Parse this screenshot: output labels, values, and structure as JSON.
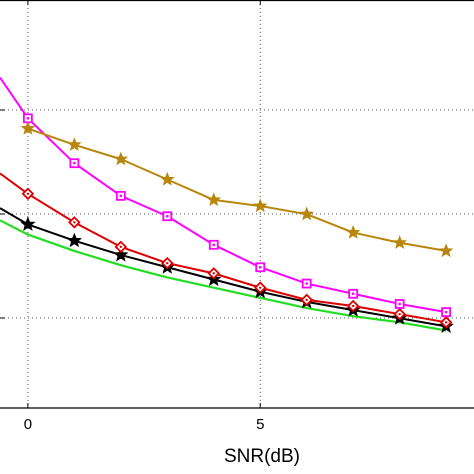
{
  "chart_data": {
    "type": "line",
    "title": "",
    "xlabel": "SNR(dB)",
    "ylabel": "",
    "x_ticks": [
      0,
      5
    ],
    "xlim": [
      -0.6,
      9.6
    ],
    "ylim": [
      0,
      10
    ],
    "grid": true,
    "series": [
      {
        "color": "#b8860b",
        "marker": "star",
        "x": [
          0,
          1,
          2,
          3,
          4,
          5,
          6,
          7,
          8,
          9
        ],
        "y": [
          6.85,
          6.45,
          6.1,
          5.6,
          5.1,
          4.95,
          4.75,
          4.3,
          4.05,
          3.85
        ]
      },
      {
        "color": "#ff00ff",
        "marker": "square",
        "x": [
          -0.6,
          0,
          1,
          2,
          3,
          4,
          5,
          6,
          7,
          8,
          9
        ],
        "y": [
          8.1,
          7.1,
          6.0,
          5.2,
          4.7,
          4.0,
          3.45,
          3.05,
          2.8,
          2.55,
          2.35
        ]
      },
      {
        "color": "#dd0000",
        "marker": "diamond",
        "x": [
          -0.6,
          0,
          1,
          2,
          3,
          4,
          5,
          6,
          7,
          8,
          9
        ],
        "y": [
          5.75,
          5.25,
          4.55,
          3.95,
          3.55,
          3.3,
          2.95,
          2.65,
          2.5,
          2.3,
          2.1
        ]
      },
      {
        "color": "#000000",
        "marker": "pentagram",
        "x": [
          -0.6,
          0,
          1,
          2,
          3,
          4,
          5,
          6,
          7,
          8,
          9
        ],
        "y": [
          4.9,
          4.5,
          4.1,
          3.75,
          3.45,
          3.15,
          2.85,
          2.6,
          2.4,
          2.2,
          2.0
        ]
      },
      {
        "color": "#22dd22",
        "marker": "none",
        "x": [
          -0.6,
          0,
          1,
          2,
          3,
          4,
          5,
          6,
          7,
          8,
          9
        ],
        "y": [
          4.6,
          4.25,
          3.85,
          3.5,
          3.2,
          2.95,
          2.7,
          2.45,
          2.25,
          2.1,
          1.9
        ]
      }
    ]
  }
}
